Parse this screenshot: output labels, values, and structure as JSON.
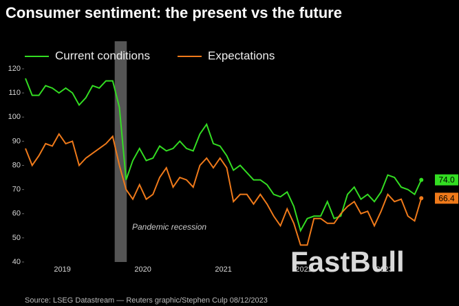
{
  "chart_data": {
    "type": "line",
    "title": "Consumer sentiment: the present vs the future",
    "source": "Source: LSEG Datastream — Reuters graphic/Stephen Culp 08/12/2023",
    "annotation": "Pandemic recession",
    "watermark": "FastBull",
    "categories": [
      null,
      null,
      null,
      null,
      null,
      null,
      "2019",
      null,
      null,
      null,
      null,
      null,
      null,
      null,
      null,
      null,
      null,
      null,
      "2020",
      null,
      null,
      null,
      null,
      null,
      null,
      null,
      null,
      null,
      null,
      null,
      "2021",
      null,
      null,
      null,
      null,
      null,
      null,
      null,
      null,
      null,
      null,
      null,
      "2022",
      null,
      null,
      null,
      null,
      null,
      null,
      null,
      null,
      null,
      null,
      null,
      "2023",
      null,
      null,
      null,
      null,
      null
    ],
    "series": [
      {
        "name": "Current conditions",
        "color": "#33dd22",
        "end_label": "74.0",
        "values": [
          116,
          109,
          109,
          113,
          112,
          110,
          112,
          110,
          105,
          108,
          113,
          112,
          115,
          115,
          104,
          74,
          82,
          87,
          82,
          83,
          88,
          86,
          87,
          90,
          87,
          86,
          93,
          97,
          89,
          88,
          84,
          78,
          80,
          77,
          74,
          74,
          72,
          68,
          67,
          69,
          63,
          53,
          58,
          59,
          59,
          65,
          58,
          59,
          68,
          71,
          66,
          68,
          65,
          69,
          76,
          75,
          71,
          70,
          68,
          74
        ]
      },
      {
        "name": "Expectations",
        "color": "#f07a1a",
        "end_label": "66.4",
        "values": [
          87,
          80,
          84,
          89,
          88,
          93,
          89,
          90,
          80,
          83,
          85,
          87,
          89,
          92,
          80,
          70,
          66,
          72,
          66,
          68,
          75,
          79,
          71,
          75,
          74,
          71,
          80,
          83,
          79,
          83,
          79,
          65,
          68,
          68,
          64,
          68,
          64,
          59,
          55,
          62,
          56,
          47,
          47,
          58,
          58,
          56,
          56,
          60,
          63,
          65,
          60,
          61,
          55,
          61,
          68,
          65,
          66,
          59,
          57,
          66.4
        ]
      }
    ],
    "ylim": [
      40,
      120
    ],
    "yticks": [
      40,
      50,
      60,
      70,
      80,
      90,
      100,
      110,
      120
    ]
  }
}
